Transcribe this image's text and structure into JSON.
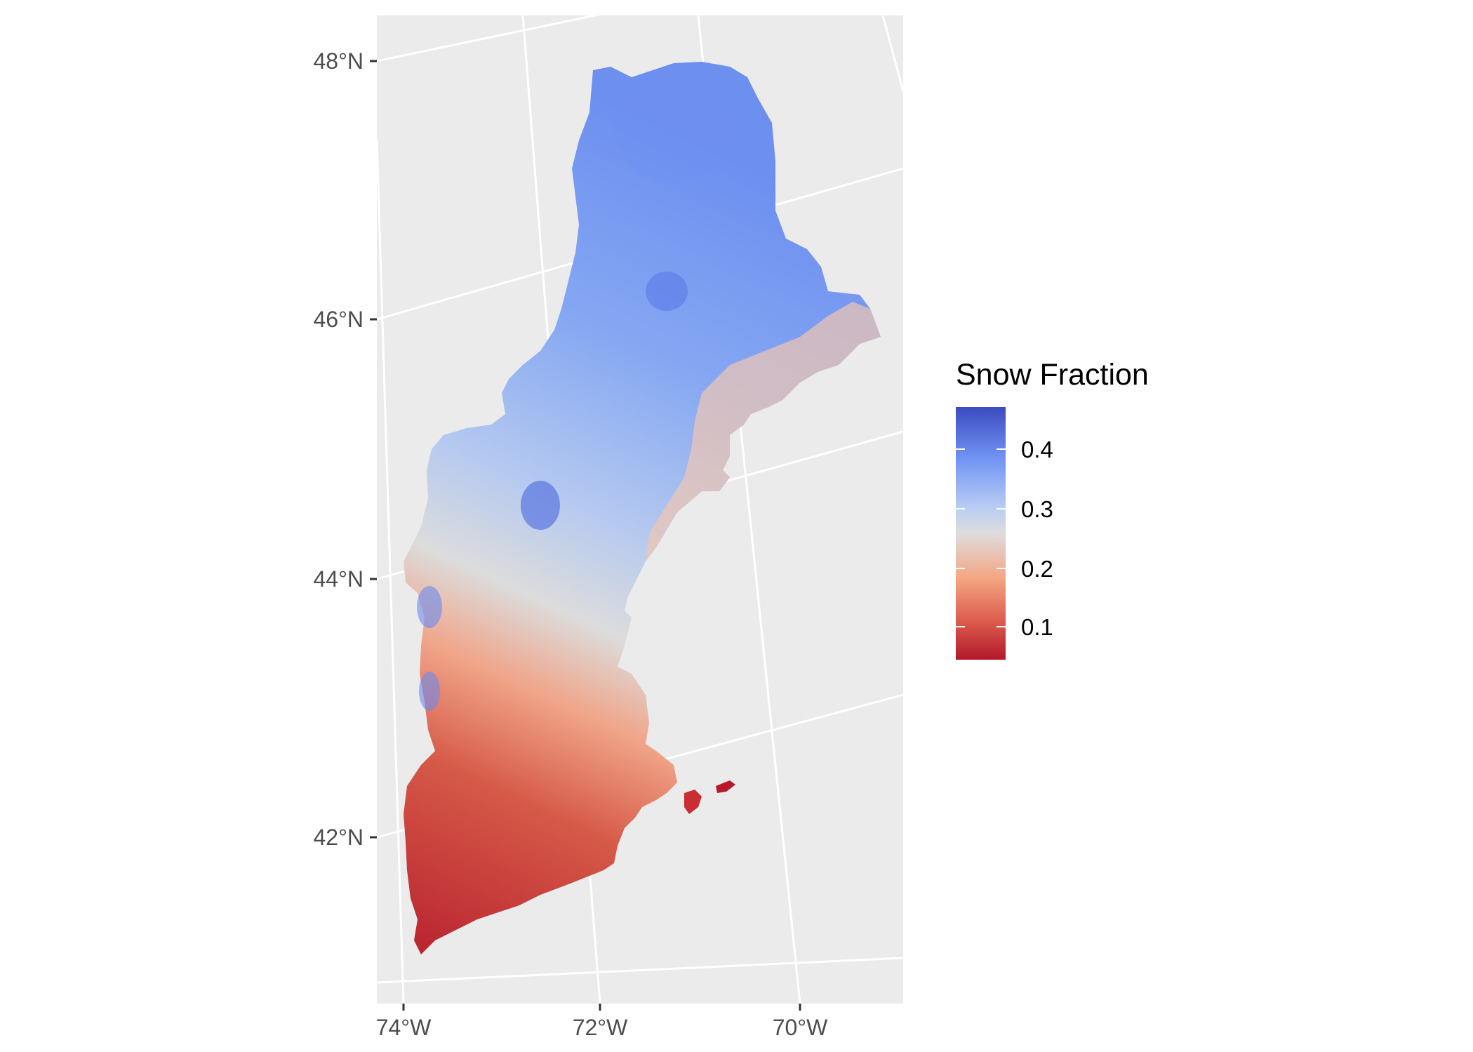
{
  "map": {
    "y_axis_labels": [
      "48°N",
      "46°N",
      "44°N",
      "42°N"
    ],
    "x_axis_labels": [
      "74°W",
      "72°W",
      "70°W"
    ],
    "background_color": "#ebebeb",
    "graticule_color": "#ffffff",
    "region_shown": "New England (CT, RI, MA, VT, NH, ME)",
    "fill_variable": "Snow Fraction",
    "gradient_pattern": "low snow fraction (red) in southern coastal areas; higher (blue) in northern interior and mountains"
  },
  "legend": {
    "title": "Snow Fraction",
    "ticks": [
      "0.4",
      "0.3",
      "0.2",
      "0.1"
    ],
    "range": [
      0.04,
      0.48
    ],
    "colors": {
      "low": "#b2182b",
      "mid_low": "#f4a582",
      "mid": "#dddddd",
      "mid_high": "#92b4f7",
      "high": "#3b4cc0"
    }
  }
}
